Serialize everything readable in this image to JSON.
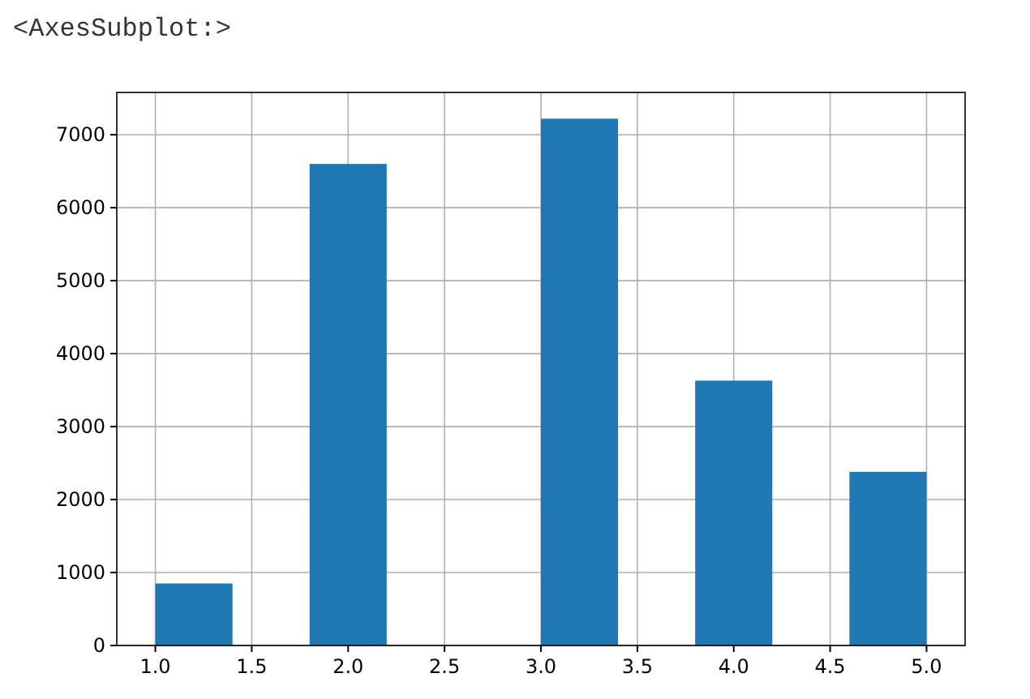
{
  "chart_data": {
    "type": "histogram",
    "annotations": [
      "<AxesSubplot:>"
    ],
    "bins": [
      1.0,
      1.4,
      1.8,
      2.2,
      2.6,
      3.0,
      3.4,
      3.8,
      4.2,
      4.6,
      5.0
    ],
    "values": [
      850,
      0,
      6600,
      0,
      0,
      7220,
      0,
      3630,
      0,
      2380
    ],
    "color": "#1f77b4",
    "xlim": [
      0.8,
      5.2
    ],
    "xticks": [
      {
        "value": 1,
        "label": "1.0"
      },
      {
        "value": 1.5,
        "label": "1.5"
      },
      {
        "value": 2,
        "label": "2.0"
      },
      {
        "value": 2.5,
        "label": "2.5"
      },
      {
        "value": 3,
        "label": "3.0"
      },
      {
        "value": 3.5,
        "label": "3.5"
      },
      {
        "value": 4,
        "label": "4.0"
      },
      {
        "value": 4.5,
        "label": "4.5"
      },
      {
        "value": 5,
        "label": "5.0"
      }
    ],
    "ylim": [
      0,
      7580
    ],
    "yticks": [
      0,
      1000,
      2000,
      3000,
      4000,
      5000,
      6000,
      7000
    ],
    "grid": true
  }
}
